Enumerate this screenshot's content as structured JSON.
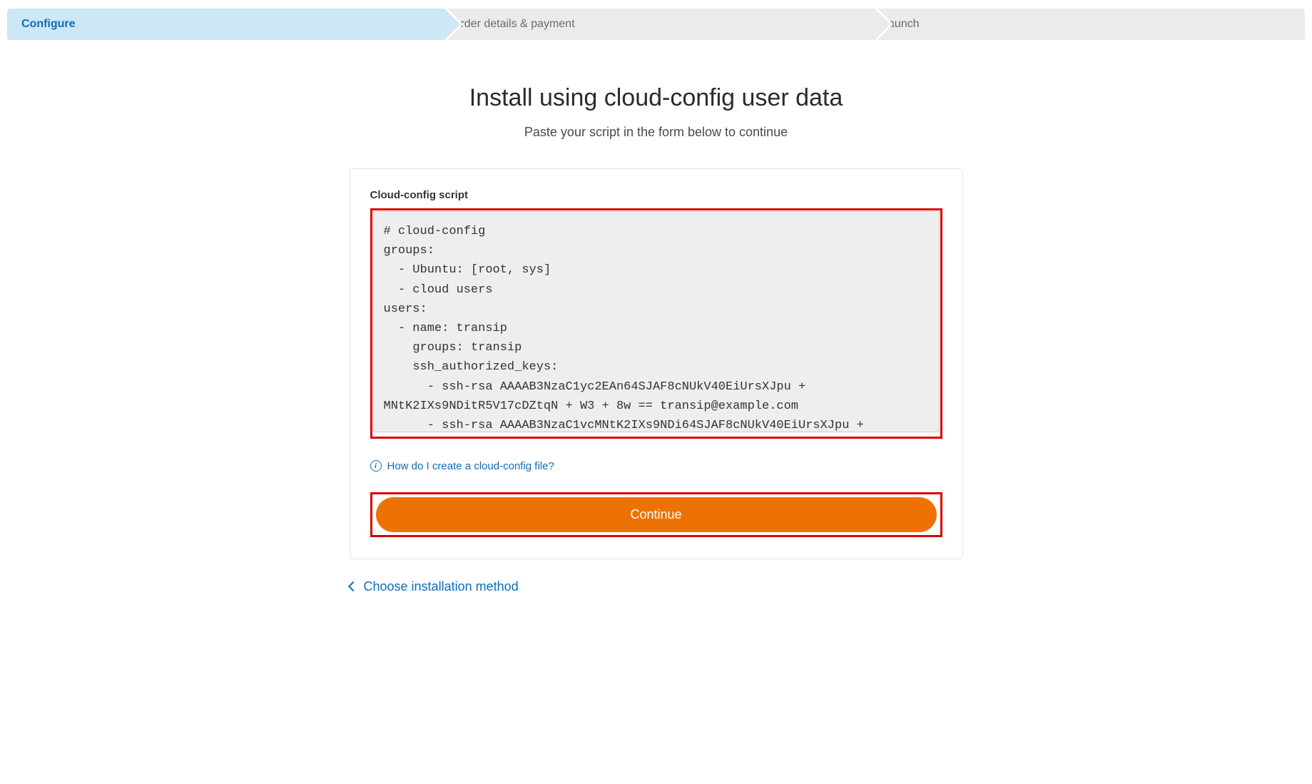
{
  "stepper": {
    "steps": [
      {
        "label": "Configure",
        "active": true
      },
      {
        "label": "Order details & payment",
        "active": false
      },
      {
        "label": "Launch",
        "active": false
      }
    ]
  },
  "page": {
    "title": "Install using cloud-config user data",
    "subtitle": "Paste your script in the form below to continue"
  },
  "form": {
    "field_label": "Cloud-config script",
    "script_value": "# cloud-config\ngroups:\n  - Ubuntu: [root, sys]\n  - cloud users\nusers:\n  - name: transip\n    groups: transip\n    ssh_authorized_keys:\n      - ssh-rsa AAAAB3NzaC1yc2EAn64SJAF8cNUkV40EiUrsXJpu + MNtK2IXs9NDitR5V17cDZtqN + W3 + 8w == transip@example.com\n      - ssh-rsa AAAAB3NzaC1vcMNtK2IXs9NDi64SJAF8cNUkV40EiUrsXJpu + ",
    "help_link_text": "How do I create a cloud-config file?",
    "continue_label": "Continue"
  },
  "back_link": {
    "label": "Choose installation method"
  },
  "colors": {
    "accent_blue": "#0d6db7",
    "step_active_bg": "#cce7f5",
    "step_inactive_bg": "#ebebeb",
    "button_orange": "#ed7203",
    "highlight_red": "#d80000",
    "code_bg": "#eeeeee"
  }
}
